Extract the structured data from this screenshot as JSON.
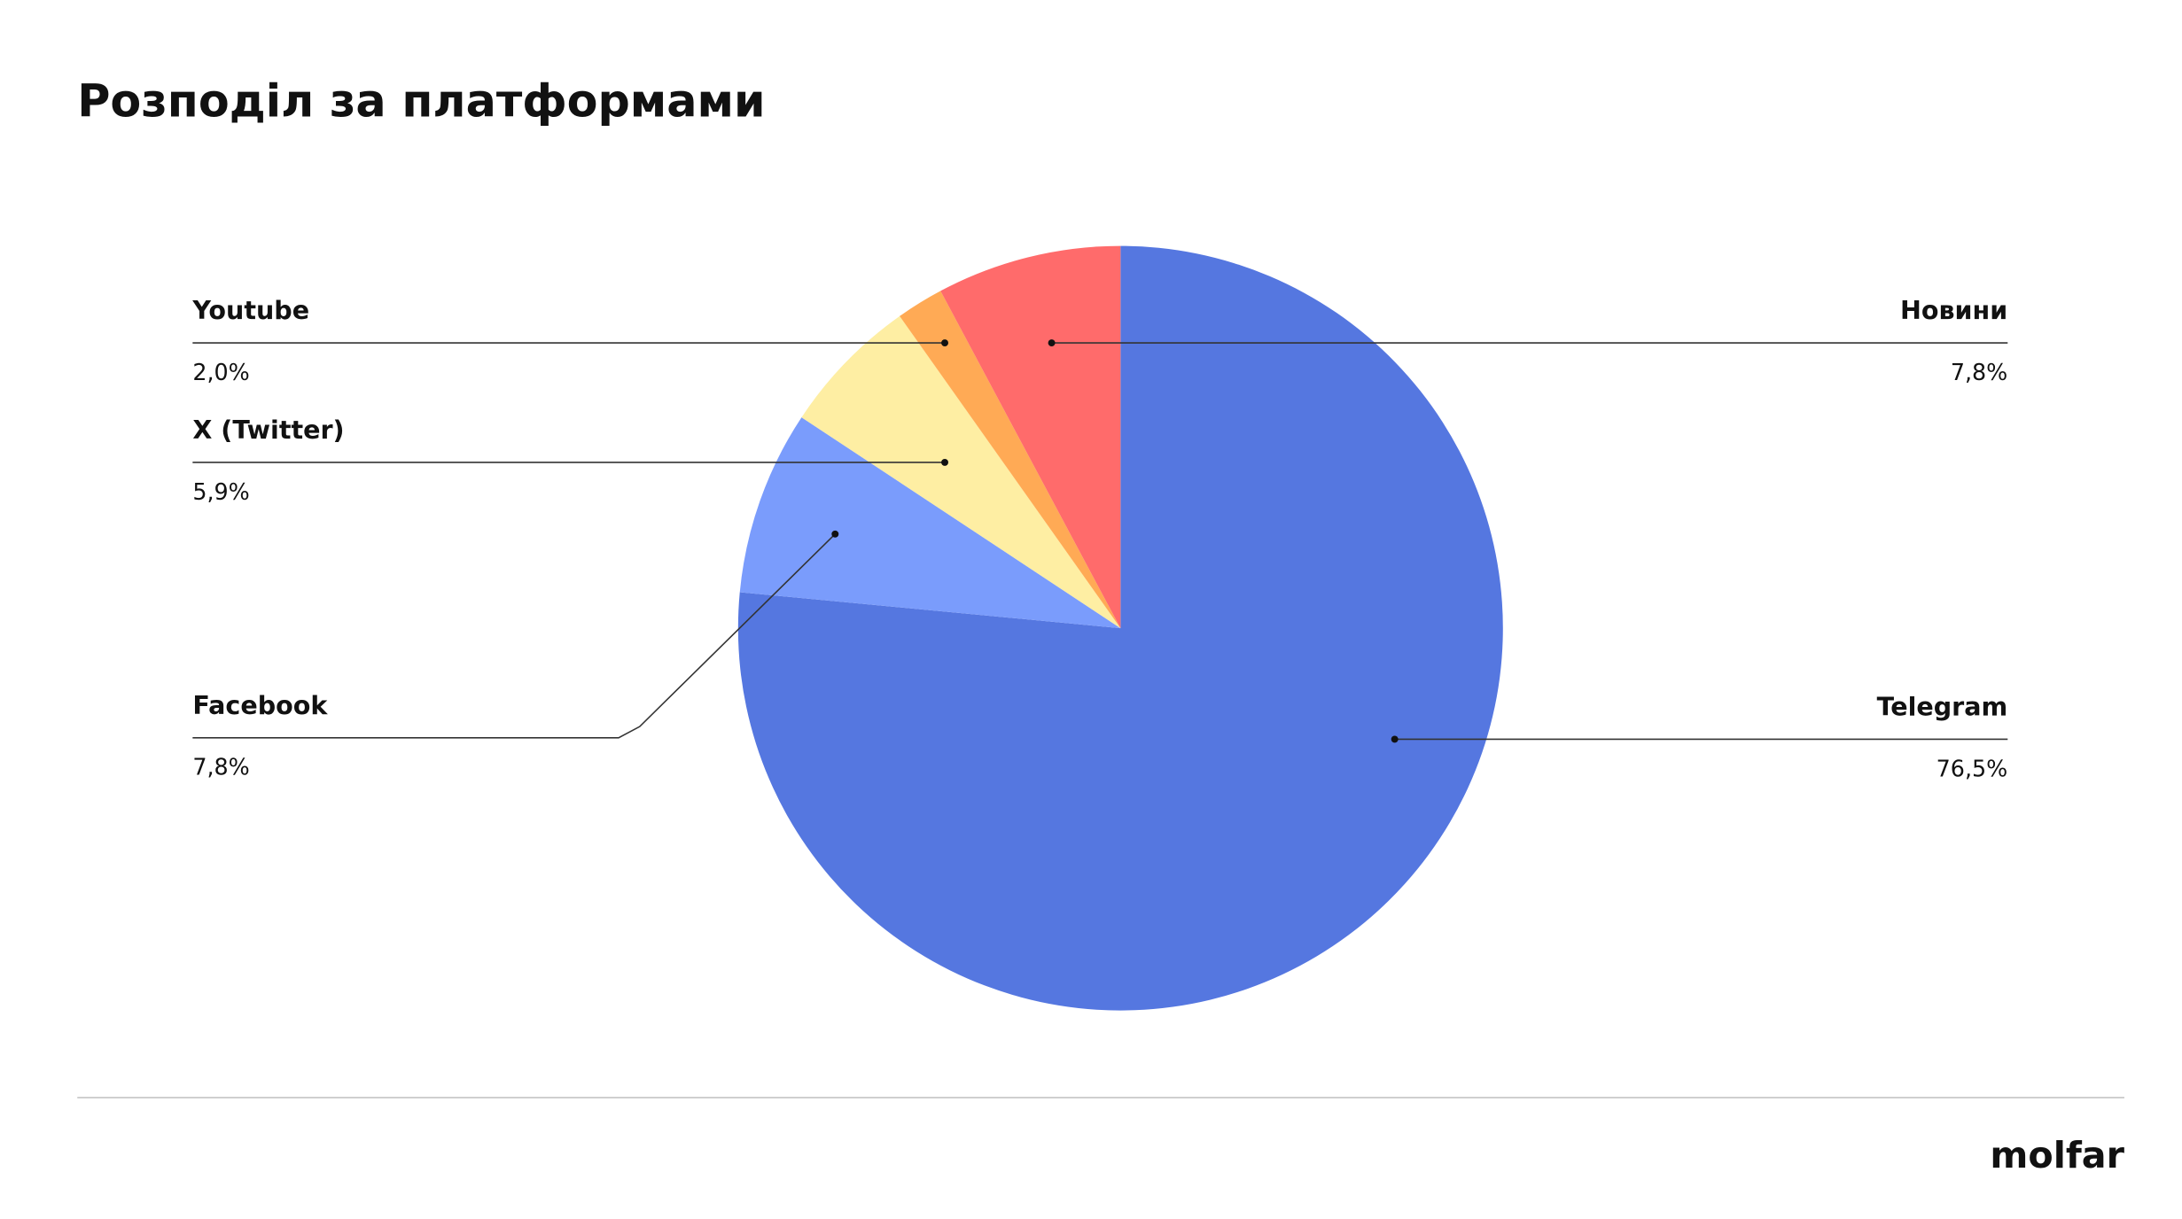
{
  "chart_data": {
    "type": "pie",
    "title": "Розподіл за платформами",
    "categories": [
      "Telegram",
      "Facebook",
      "X (Twitter)",
      "Youtube",
      "Новини"
    ],
    "values": [
      76.5,
      7.8,
      5.9,
      2.0,
      7.8
    ],
    "value_labels": [
      "76,5%",
      "7,8%",
      "5,9%",
      "2,0%",
      "7,8%"
    ],
    "colors": [
      "#5577e0",
      "#7a9cfc",
      "#feeea3",
      "#ffaa55",
      "#ff6b6b"
    ]
  },
  "logo": "molfar"
}
